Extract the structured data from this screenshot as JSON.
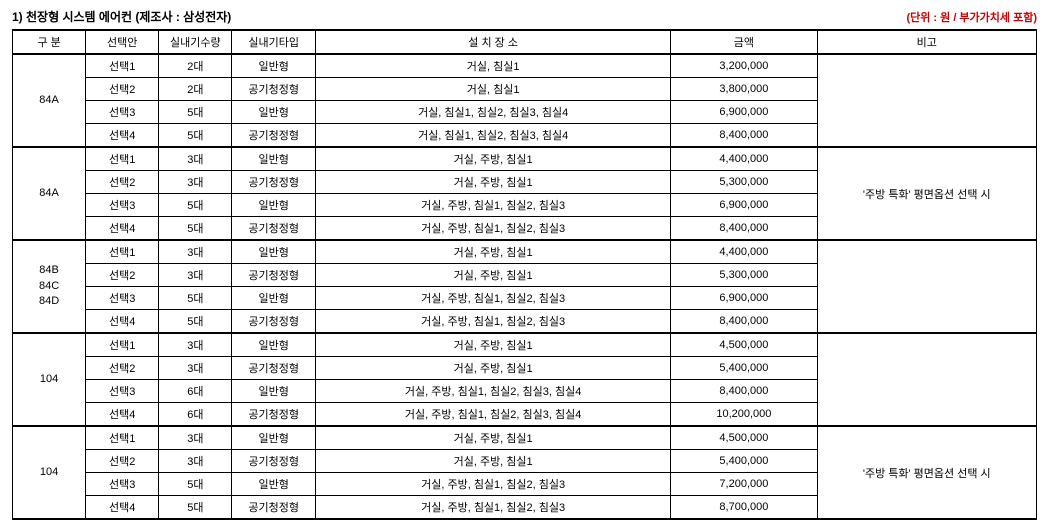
{
  "title": "1) 천장형 시스템 에어컨 (제조사 : 삼성전자)",
  "unit_note": "(단위 : 원 / 부가가치세 포함)",
  "columns": {
    "gubun": "구 분",
    "option": "선택안",
    "qty": "실내기수량",
    "type": "실내기타입",
    "place": "설 치 장 소",
    "amount": "금액",
    "remark": "비고"
  },
  "groups": [
    {
      "label": "84A",
      "remark": "",
      "rows": [
        {
          "option": "선택1",
          "qty": "2대",
          "type": "일반형",
          "place": "거실, 침실1",
          "amount": "3,200,000"
        },
        {
          "option": "선택2",
          "qty": "2대",
          "type": "공기청정형",
          "place": "거실, 침실1",
          "amount": "3,800,000"
        },
        {
          "option": "선택3",
          "qty": "5대",
          "type": "일반형",
          "place": "거실, 침실1, 침실2, 침실3, 침실4",
          "amount": "6,900,000"
        },
        {
          "option": "선택4",
          "qty": "5대",
          "type": "공기청정형",
          "place": "거실, 침실1, 침실2, 침실3, 침실4",
          "amount": "8,400,000"
        }
      ]
    },
    {
      "label": "84A",
      "remark": "'주방 특화' 평면옵션 선택 시",
      "rows": [
        {
          "option": "선택1",
          "qty": "3대",
          "type": "일반형",
          "place": "거실, 주방, 침실1",
          "amount": "4,400,000"
        },
        {
          "option": "선택2",
          "qty": "3대",
          "type": "공기청정형",
          "place": "거실, 주방, 침실1",
          "amount": "5,300,000"
        },
        {
          "option": "선택3",
          "qty": "5대",
          "type": "일반형",
          "place": "거실, 주방, 침실1, 침실2, 침실3",
          "amount": "6,900,000"
        },
        {
          "option": "선택4",
          "qty": "5대",
          "type": "공기청정형",
          "place": "거실, 주방, 침실1, 침실2, 침실3",
          "amount": "8,400,000"
        }
      ]
    },
    {
      "label": "84B\n84C\n84D",
      "remark": "",
      "rows": [
        {
          "option": "선택1",
          "qty": "3대",
          "type": "일반형",
          "place": "거실, 주방, 침실1",
          "amount": "4,400,000"
        },
        {
          "option": "선택2",
          "qty": "3대",
          "type": "공기청정형",
          "place": "거실, 주방, 침실1",
          "amount": "5,300,000"
        },
        {
          "option": "선택3",
          "qty": "5대",
          "type": "일반형",
          "place": "거실, 주방, 침실1, 침실2, 침실3",
          "amount": "6,900,000"
        },
        {
          "option": "선택4",
          "qty": "5대",
          "type": "공기청정형",
          "place": "거실, 주방, 침실1, 침실2, 침실3",
          "amount": "8,400,000"
        }
      ]
    },
    {
      "label": "104",
      "remark": "",
      "rows": [
        {
          "option": "선택1",
          "qty": "3대",
          "type": "일반형",
          "place": "거실, 주방,   침실1",
          "amount": "4,500,000"
        },
        {
          "option": "선택2",
          "qty": "3대",
          "type": "공기청정형",
          "place": "거실, 주방, 침실1",
          "amount": "5,400,000"
        },
        {
          "option": "선택3",
          "qty": "6대",
          "type": "일반형",
          "place": "거실, 주방, 침실1, 침실2, 침실3, 침실4",
          "amount": "8,400,000"
        },
        {
          "option": "선택4",
          "qty": "6대",
          "type": "공기청정형",
          "place": "거실, 주방, 침실1, 침실2, 침실3, 침실4",
          "amount": "10,200,000"
        }
      ]
    },
    {
      "label": "104",
      "remark": "'주방 특화' 평면옵션 선택 시",
      "rows": [
        {
          "option": "선택1",
          "qty": "3대",
          "type": "일반형",
          "place": "거실, 주방, 침실1",
          "amount": "4,500,000"
        },
        {
          "option": "선택2",
          "qty": "3대",
          "type": "공기청정형",
          "place": "거실, 주방, 침실1",
          "amount": "5,400,000"
        },
        {
          "option": "선택3",
          "qty": "5대",
          "type": "일반형",
          "place": "거실, 주방, 침실1, 침실2, 침실3",
          "amount": "7,200,000"
        },
        {
          "option": "선택4",
          "qty": "5대",
          "type": "공기청정형",
          "place": "거실, 주방, 침실1, 침실2, 침실3",
          "amount": "8,700,000"
        }
      ]
    }
  ]
}
